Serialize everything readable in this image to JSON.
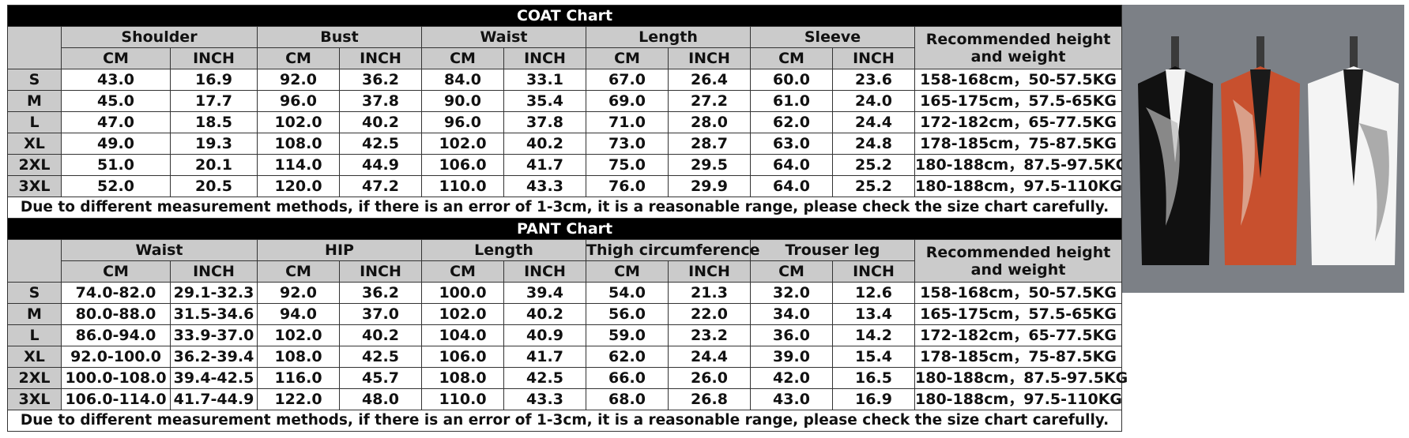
{
  "tables": [
    {
      "title": "COAT Chart",
      "groups": [
        "Shoulder",
        "Bust",
        "Waist",
        "Length",
        "Sleeve"
      ],
      "units": [
        "CM",
        "INCH"
      ],
      "recommended_header": "Recommended height and weight",
      "rows": [
        [
          "S",
          "43.0",
          "16.9",
          "92.0",
          "36.2",
          "84.0",
          "33.1",
          "67.0",
          "26.4",
          "60.0",
          "23.6",
          "158-168cm，50-57.5KG"
        ],
        [
          "M",
          "45.0",
          "17.7",
          "96.0",
          "37.8",
          "90.0",
          "35.4",
          "69.0",
          "27.2",
          "61.0",
          "24.0",
          "165-175cm，57.5-65KG"
        ],
        [
          "L",
          "47.0",
          "18.5",
          "102.0",
          "40.2",
          "96.0",
          "37.8",
          "71.0",
          "28.0",
          "62.0",
          "24.4",
          "172-182cm，65-77.5KG"
        ],
        [
          "XL",
          "49.0",
          "19.3",
          "108.0",
          "42.5",
          "102.0",
          "40.2",
          "73.0",
          "28.7",
          "63.0",
          "24.8",
          "178-185cm，75-87.5KG"
        ],
        [
          "2XL",
          "51.0",
          "20.1",
          "114.0",
          "44.9",
          "106.0",
          "41.7",
          "75.0",
          "29.5",
          "64.0",
          "25.2",
          "180-188cm，87.5-97.5KG"
        ],
        [
          "3XL",
          "52.0",
          "20.5",
          "120.0",
          "47.2",
          "110.0",
          "43.3",
          "76.0",
          "29.9",
          "64.0",
          "25.2",
          "180-188cm，97.5-110KG"
        ]
      ],
      "note": "Due to different measurement methods, if there is an error of 1-3cm, it is a reasonable range, please check the size chart carefully."
    },
    {
      "title": "PANT Chart",
      "groups": [
        "Waist",
        "HIP",
        "Length",
        "Thigh circumference",
        "Trouser leg"
      ],
      "units": [
        "CM",
        "INCH"
      ],
      "recommended_header": "Recommended height and weight",
      "rows": [
        [
          "S",
          "74.0-82.0",
          "29.1-32.3",
          "92.0",
          "36.2",
          "100.0",
          "39.4",
          "54.0",
          "21.3",
          "32.0",
          "12.6",
          "158-168cm，50-57.5KG"
        ],
        [
          "M",
          "80.0-88.0",
          "31.5-34.6",
          "94.0",
          "37.0",
          "102.0",
          "40.2",
          "56.0",
          "22.0",
          "34.0",
          "13.4",
          "165-175cm，57.5-65KG"
        ],
        [
          "L",
          "86.0-94.0",
          "33.9-37.0",
          "102.0",
          "40.2",
          "104.0",
          "40.9",
          "59.0",
          "23.2",
          "36.0",
          "14.2",
          "172-182cm，65-77.5KG"
        ],
        [
          "XL",
          "92.0-100.0",
          "36.2-39.4",
          "108.0",
          "42.5",
          "106.0",
          "41.7",
          "62.0",
          "24.4",
          "39.0",
          "15.4",
          "178-185cm，75-87.5KG"
        ],
        [
          "2XL",
          "100.0-108.0",
          "39.4-42.5",
          "116.0",
          "45.7",
          "108.0",
          "42.5",
          "66.0",
          "26.0",
          "42.0",
          "16.5",
          "180-188cm，87.5-97.5KG"
        ],
        [
          "3XL",
          "106.0-114.0",
          "41.7-44.9",
          "122.0",
          "48.0",
          "110.0",
          "43.3",
          "68.0",
          "26.8",
          "43.0",
          "16.9",
          "180-188cm，97.5-110KG"
        ]
      ],
      "note": "Due to different measurement methods, if there is an error of 1-3cm, it is a reasonable range, please check the size chart carefully."
    }
  ]
}
